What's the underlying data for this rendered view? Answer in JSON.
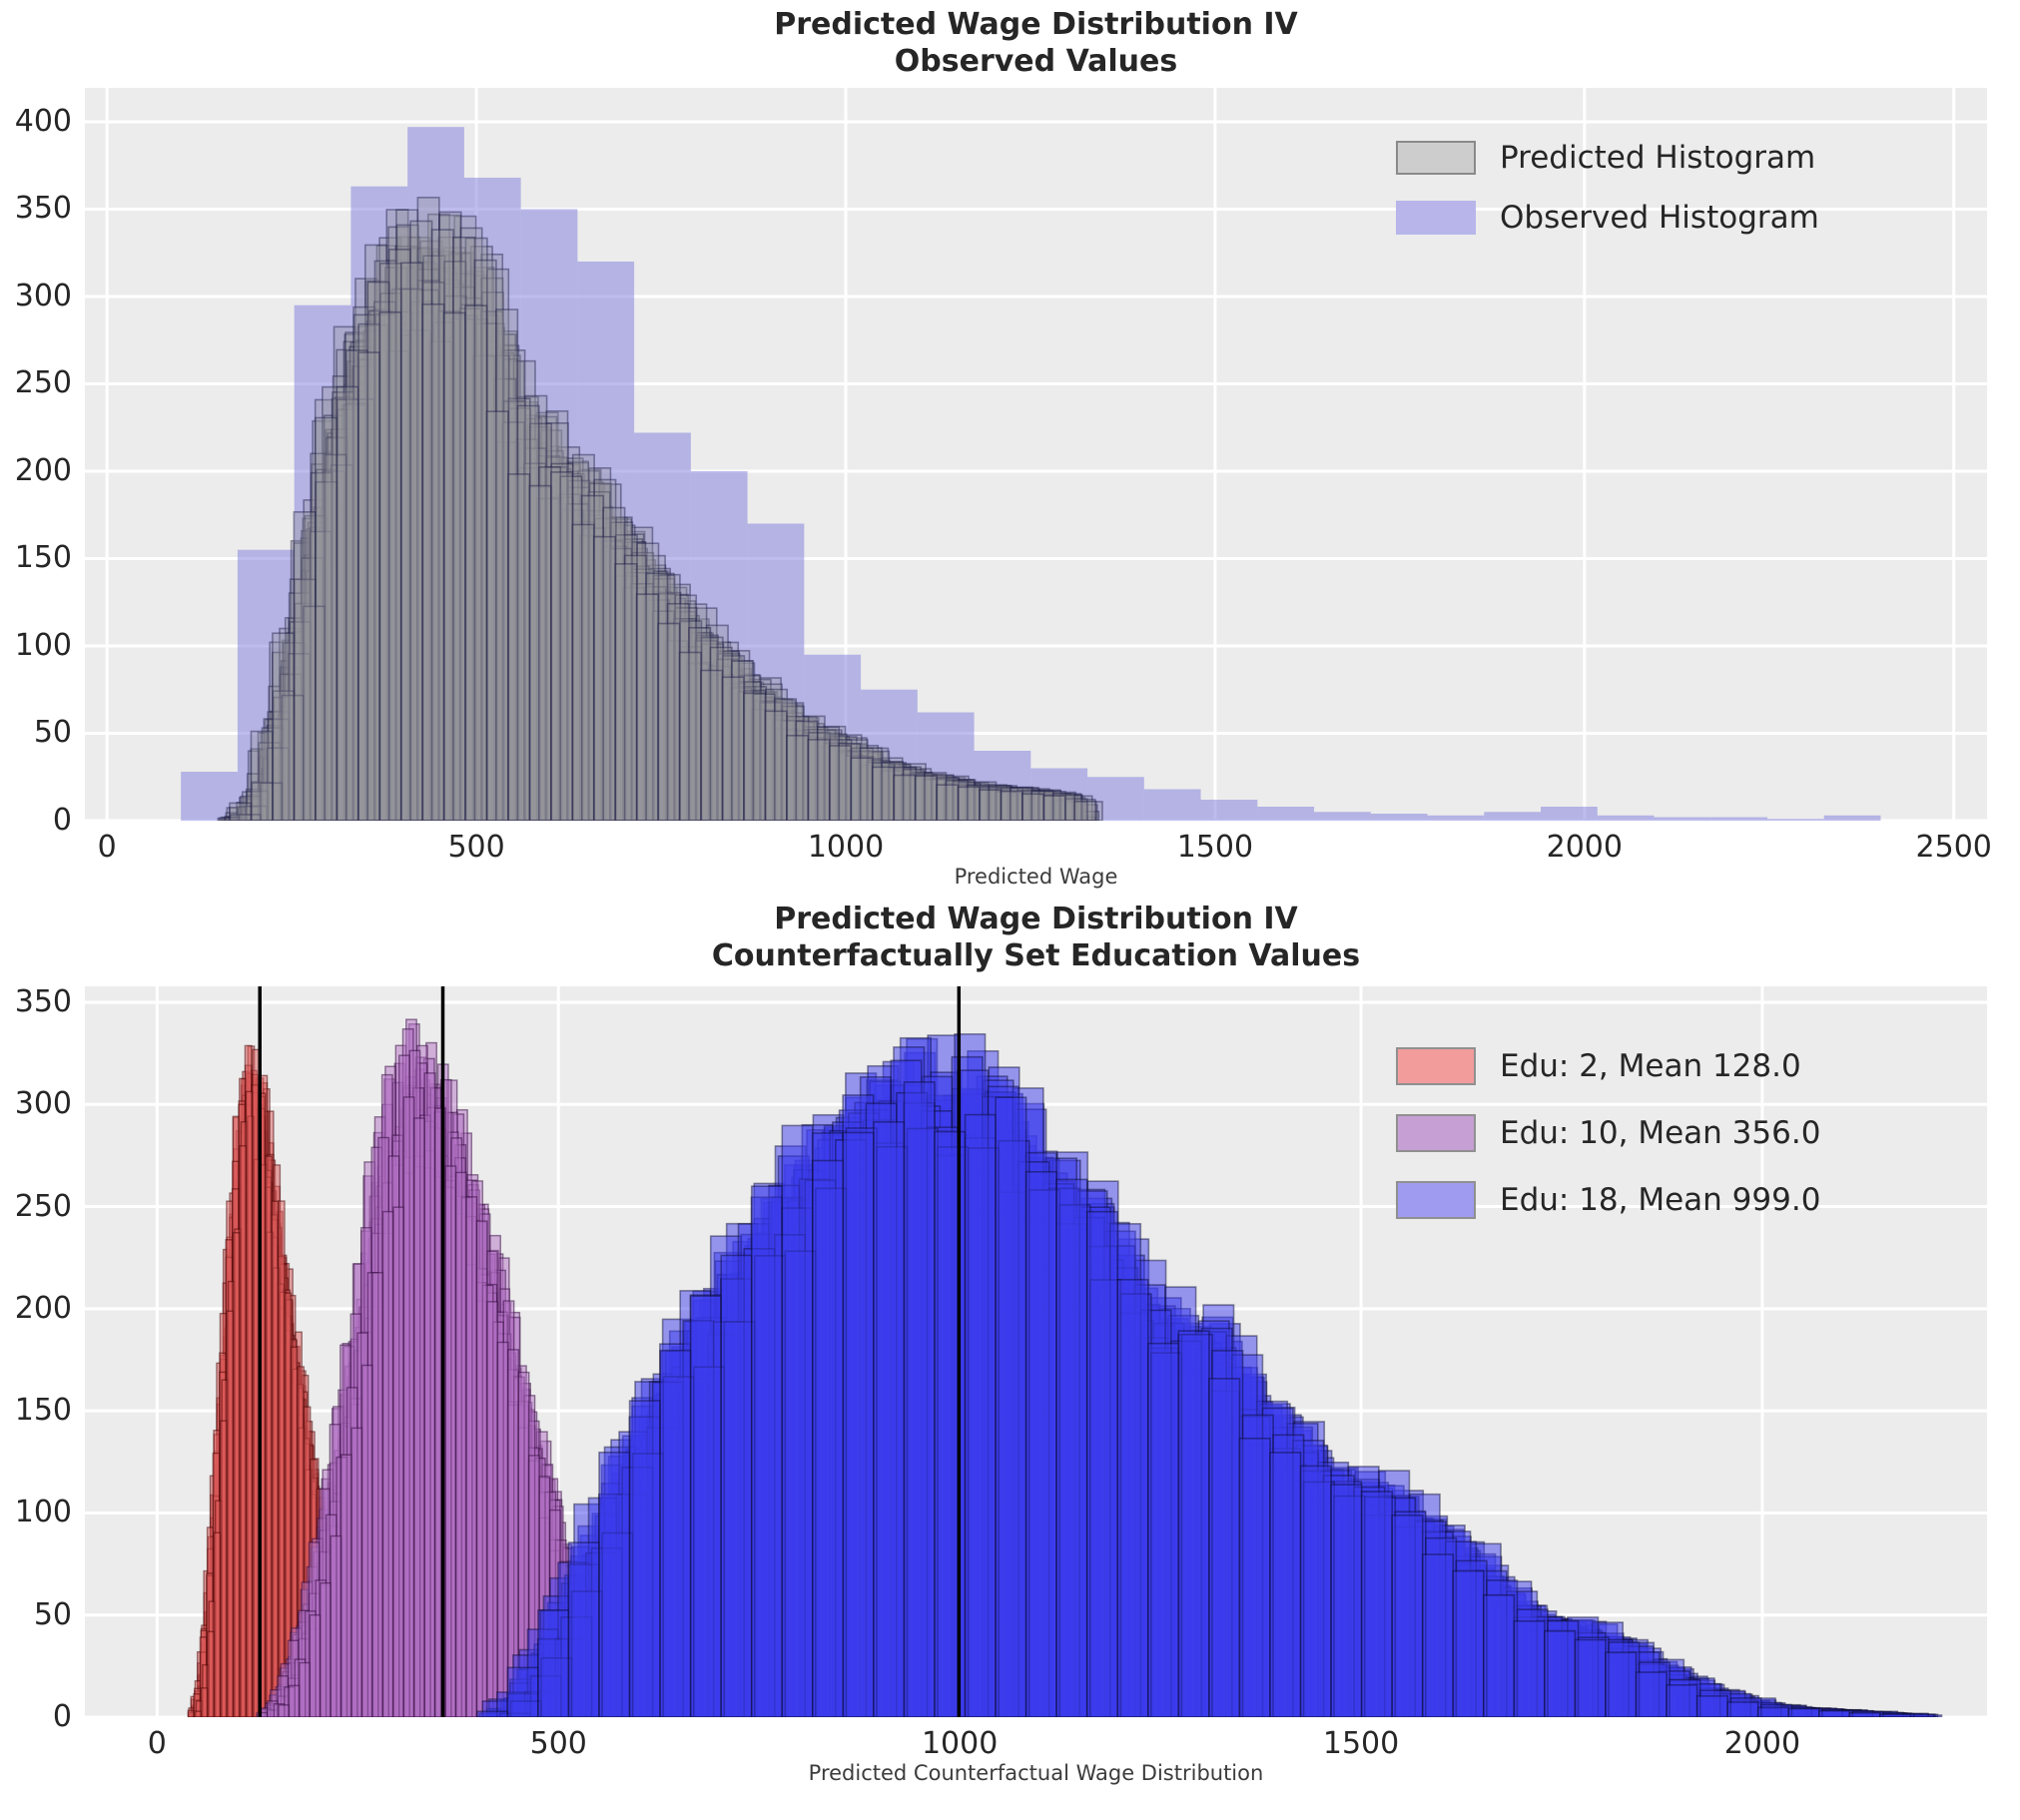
{
  "figure": {
    "background": "#ffffff",
    "plot_background": "#ececec",
    "grid_color": "#ffffff",
    "tick_color": "#262626",
    "axis_label_color": "#3c3c3c"
  },
  "chart_data": [
    {
      "type": "bar",
      "subtype": "overlaid-histograms",
      "title_line1": "Predicted Wage Distribution IV",
      "title_line2": "Observed Values",
      "xlabel": "Predicted Wage",
      "ylabel": "",
      "xticks": [
        0,
        500,
        1000,
        1500,
        2000,
        2500
      ],
      "yticks": [
        0,
        50,
        100,
        150,
        200,
        250,
        300,
        350,
        400
      ],
      "xlim": [
        -30,
        2545
      ],
      "ylim": [
        0,
        419.4
      ],
      "grid": true,
      "legend_position": "upper right",
      "legend": [
        {
          "label": "Predicted Histogram",
          "swatch": "#cdcdcd",
          "border": "#8a8a8a"
        },
        {
          "label": "Observed Histogram",
          "swatch": "#b8b5ea",
          "border": ""
        }
      ],
      "series": [
        {
          "name": "Observed Histogram",
          "kind": "bars",
          "bin_start": 100,
          "bin_width": 76.7,
          "counts": [
            28,
            155,
            295,
            363,
            397,
            368,
            350,
            320,
            222,
            200,
            170,
            95,
            75,
            62,
            40,
            30,
            25,
            18,
            12,
            8,
            5,
            4,
            3,
            5,
            8,
            3,
            2,
            2,
            1,
            3
          ],
          "fill": "rgba(124,121,219,0.5)"
        },
        {
          "name": "Predicted Histogram",
          "kind": "sampled",
          "draws": 26,
          "seed": 1013,
          "bin_width": 29,
          "x_jitter": 18,
          "fill": "rgba(148,148,155,0.32)",
          "stroke": "rgba(28,28,70,0.45)",
          "stroke_width": 1.6,
          "envelope": [
            [
              168,
              0
            ],
            [
              195,
              8
            ],
            [
              215,
              30
            ],
            [
              235,
              70
            ],
            [
              255,
              110
            ],
            [
              275,
              160
            ],
            [
              295,
              215
            ],
            [
              315,
              255
            ],
            [
              330,
              285
            ],
            [
              345,
              305
            ],
            [
              360,
              320
            ],
            [
              380,
              338
            ],
            [
              400,
              345
            ],
            [
              420,
              350
            ],
            [
              440,
              355
            ],
            [
              460,
              352
            ],
            [
              480,
              345
            ],
            [
              495,
              338
            ],
            [
              510,
              330
            ],
            [
              525,
              318
            ],
            [
              540,
              300
            ],
            [
              552,
              275
            ],
            [
              562,
              252
            ],
            [
              580,
              240
            ],
            [
              600,
              232
            ],
            [
              620,
              224
            ],
            [
              640,
              216
            ],
            [
              660,
              205
            ],
            [
              680,
              192
            ],
            [
              700,
              180
            ],
            [
              720,
              168
            ],
            [
              740,
              155
            ],
            [
              760,
              143
            ],
            [
              780,
              131
            ],
            [
              800,
              120
            ],
            [
              820,
              110
            ],
            [
              840,
              101
            ],
            [
              860,
              92
            ],
            [
              880,
              84
            ],
            [
              900,
              76
            ],
            [
              920,
              69
            ],
            [
              940,
              63
            ],
            [
              960,
              58
            ],
            [
              980,
              53
            ],
            [
              1000,
              48
            ],
            [
              1020,
              44
            ],
            [
              1040,
              40
            ],
            [
              1060,
              36
            ],
            [
              1080,
              33
            ],
            [
              1100,
              30
            ],
            [
              1120,
              28
            ],
            [
              1140,
              26
            ],
            [
              1160,
              24
            ],
            [
              1180,
              22
            ],
            [
              1200,
              21
            ],
            [
              1220,
              20
            ],
            [
              1240,
              19
            ],
            [
              1260,
              18
            ],
            [
              1280,
              17
            ],
            [
              1300,
              16
            ],
            [
              1315,
              12
            ],
            [
              1328,
              0
            ]
          ]
        }
      ],
      "mean_lines": []
    },
    {
      "type": "bar",
      "subtype": "overlaid-histograms",
      "title_line1": "Predicted Wage Distribution IV",
      "title_line2": "Counterfactually Set Education Values",
      "xlabel": "Predicted Counterfactual Wage Distribution",
      "ylabel": "",
      "xticks": [
        0,
        500,
        1000,
        1500,
        2000
      ],
      "yticks": [
        0,
        50,
        100,
        150,
        200,
        250,
        300,
        350
      ],
      "xlim": [
        -90,
        2280
      ],
      "ylim": [
        0,
        357.8
      ],
      "grid": true,
      "legend_position": "upper right",
      "legend": [
        {
          "label": "Edu: 2, Mean 128.0",
          "swatch": "#f29c9c",
          "border": "#909090"
        },
        {
          "label": "Edu: 10, Mean 356.0",
          "swatch": "#c69fd4",
          "border": "#909090"
        },
        {
          "label": "Edu: 18, Mean 999.0",
          "swatch": "#9e9bf0",
          "border": "#909090"
        }
      ],
      "series": [
        {
          "name": "Edu: 2, Mean 128.0",
          "kind": "sampled",
          "draws": 22,
          "seed": 2027,
          "bin_width": 8,
          "x_jitter": 7,
          "fill": "rgba(222,90,90,0.5)",
          "stroke": "rgba(70,0,0,0.5)",
          "stroke_width": 1.4,
          "envelope": [
            [
              45,
              0
            ],
            [
              55,
              15
            ],
            [
              63,
              45
            ],
            [
              70,
              85
            ],
            [
              78,
              140
            ],
            [
              86,
              200
            ],
            [
              94,
              255
            ],
            [
              102,
              300
            ],
            [
              110,
              328
            ],
            [
              118,
              336
            ],
            [
              126,
              325
            ],
            [
              134,
              305
            ],
            [
              142,
              282
            ],
            [
              150,
              258
            ],
            [
              158,
              232
            ],
            [
              166,
              206
            ],
            [
              175,
              180
            ],
            [
              185,
              152
            ],
            [
              195,
              125
            ],
            [
              205,
              100
            ],
            [
              215,
              78
            ],
            [
              225,
              58
            ],
            [
              235,
              42
            ],
            [
              245,
              28
            ],
            [
              255,
              16
            ],
            [
              263,
              8
            ],
            [
              270,
              0
            ]
          ]
        },
        {
          "name": "Edu: 10, Mean 356.0",
          "kind": "sampled",
          "draws": 22,
          "seed": 3041,
          "bin_width": 13,
          "x_jitter": 12,
          "fill": "rgba(178,112,195,0.5)",
          "stroke": "rgba(45,5,55,0.5)",
          "stroke_width": 1.4,
          "envelope": [
            [
              135,
              0
            ],
            [
              152,
              8
            ],
            [
              168,
              22
            ],
            [
              184,
              45
            ],
            [
              200,
              75
            ],
            [
              216,
              110
            ],
            [
              232,
              150
            ],
            [
              248,
              195
            ],
            [
              264,
              240
            ],
            [
              278,
              278
            ],
            [
              292,
              305
            ],
            [
              306,
              325
            ],
            [
              318,
              335
            ],
            [
              330,
              333
            ],
            [
              342,
              325
            ],
            [
              355,
              312
            ],
            [
              368,
              298
            ],
            [
              382,
              282
            ],
            [
              396,
              262
            ],
            [
              410,
              240
            ],
            [
              424,
              218
            ],
            [
              438,
              196
            ],
            [
              452,
              172
            ],
            [
              466,
              148
            ],
            [
              480,
              124
            ],
            [
              494,
              100
            ],
            [
              508,
              78
            ],
            [
              522,
              57
            ],
            [
              536,
              40
            ],
            [
              550,
              26
            ],
            [
              562,
              15
            ],
            [
              572,
              8
            ],
            [
              580,
              0
            ]
          ]
        },
        {
          "name": "Edu: 18, Mean 999.0",
          "kind": "sampled",
          "draws": 22,
          "seed": 4057,
          "bin_width": 38,
          "x_jitter": 26,
          "fill": "rgba(60,60,238,0.5)",
          "stroke": "rgba(8,8,45,0.45)",
          "stroke_width": 1.6,
          "envelope": [
            [
              430,
              0
            ],
            [
              465,
              15
            ],
            [
              500,
              45
            ],
            [
              535,
              80
            ],
            [
              570,
              115
            ],
            [
              605,
              150
            ],
            [
              640,
              180
            ],
            [
              675,
              205
            ],
            [
              710,
              230
            ],
            [
              745,
              252
            ],
            [
              780,
              272
            ],
            [
              815,
              292
            ],
            [
              850,
              310
            ],
            [
              885,
              325
            ],
            [
              920,
              335
            ],
            [
              950,
              337
            ],
            [
              980,
              328
            ],
            [
              1010,
              322
            ],
            [
              1040,
              330
            ],
            [
              1070,
              310
            ],
            [
              1100,
              292
            ],
            [
              1130,
              278
            ],
            [
              1160,
              268
            ],
            [
              1190,
              252
            ],
            [
              1220,
              230
            ],
            [
              1250,
              212
            ],
            [
              1280,
              202
            ],
            [
              1310,
              208
            ],
            [
              1340,
              188
            ],
            [
              1370,
              168
            ],
            [
              1400,
              152
            ],
            [
              1430,
              145
            ],
            [
              1460,
              130
            ],
            [
              1490,
              120
            ],
            [
              1520,
              118
            ],
            [
              1550,
              112
            ],
            [
              1580,
              104
            ],
            [
              1610,
              92
            ],
            [
              1640,
              82
            ],
            [
              1670,
              70
            ],
            [
              1700,
              58
            ],
            [
              1730,
              52
            ],
            [
              1760,
              49
            ],
            [
              1790,
              47
            ],
            [
              1820,
              40
            ],
            [
              1850,
              32
            ],
            [
              1880,
              25
            ],
            [
              1910,
              20
            ],
            [
              1940,
              14
            ],
            [
              1970,
              10
            ],
            [
              2000,
              7
            ],
            [
              2040,
              5
            ],
            [
              2080,
              4
            ],
            [
              2120,
              3
            ],
            [
              2160,
              2
            ],
            [
              2200,
              1
            ],
            [
              2230,
              0
            ]
          ]
        }
      ],
      "mean_lines": [
        {
          "x": 128,
          "color": "#000000"
        },
        {
          "x": 356,
          "color": "#000000"
        },
        {
          "x": 999,
          "color": "#000000"
        }
      ]
    }
  ]
}
